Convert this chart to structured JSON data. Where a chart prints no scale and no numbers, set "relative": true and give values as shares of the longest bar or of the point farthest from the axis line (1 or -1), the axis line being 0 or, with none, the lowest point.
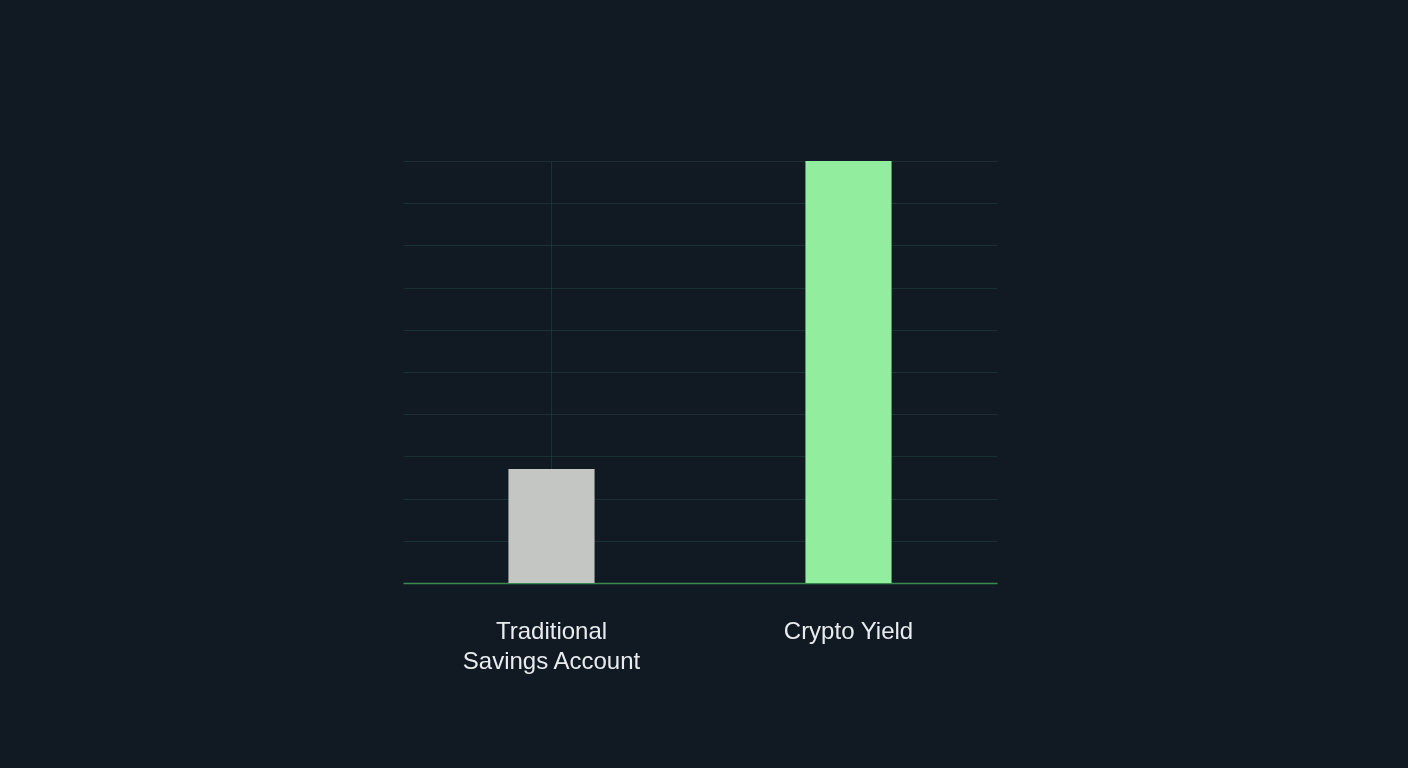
{
  "chart_data": {
    "type": "bar",
    "relative": true,
    "categories": [
      "Traditional Savings Account",
      "Crypto Yield"
    ],
    "values": [
      0.27,
      1
    ],
    "colors": [
      "#c4c6c4",
      "#92ee9e"
    ],
    "grid": true
  }
}
